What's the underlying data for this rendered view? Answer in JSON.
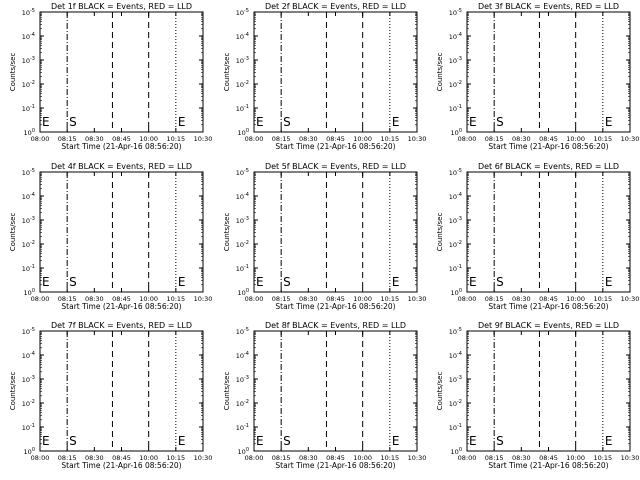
{
  "chart_data": [
    {
      "type": "line",
      "title": "Det 1f BLACK = Events, RED = LLD",
      "xlabel": "Start Time (21-Apr-16 08:56:20)",
      "ylabel": "Counts/sec",
      "markers": [
        "E",
        "S",
        "E"
      ],
      "series": [],
      "grid": false
    },
    {
      "type": "line",
      "title": "Det 2f BLACK = Events, RED = LLD",
      "xlabel": "Start Time (21-Apr-16 08:56:20)",
      "ylabel": "Counts/sec",
      "markers": [
        "E",
        "S",
        "E"
      ],
      "series": [],
      "grid": false
    },
    {
      "type": "line",
      "title": "Det 3f BLACK = Events, RED = LLD",
      "xlabel": "Start Time (21-Apr-16 08:56:20)",
      "ylabel": "Counts/sec",
      "markers": [
        "E",
        "S",
        "E"
      ],
      "series": [],
      "grid": false
    },
    {
      "type": "line",
      "title": "Det 4f BLACK = Events, RED = LLD",
      "xlabel": "Start Time (21-Apr-16 08:56:20)",
      "ylabel": "Counts/sec",
      "markers": [
        "E",
        "S",
        "E"
      ],
      "series": [],
      "grid": false
    },
    {
      "type": "line",
      "title": "Det 5f BLACK = Events, RED = LLD",
      "xlabel": "Start Time (21-Apr-16 08:56:20)",
      "ylabel": "Counts/sec",
      "markers": [
        "E",
        "S",
        "E"
      ],
      "series": [],
      "grid": false
    },
    {
      "type": "line",
      "title": "Det 6f BLACK = Events, RED = LLD",
      "xlabel": "Start Time (21-Apr-16 08:56:20)",
      "ylabel": "Counts/sec",
      "markers": [
        "E",
        "S",
        "E"
      ],
      "series": [],
      "grid": false
    },
    {
      "type": "line",
      "title": "Det 7f BLACK = Events, RED = LLD",
      "xlabel": "Start Time (21-Apr-16 08:56:20)",
      "ylabel": "Counts/sec",
      "markers": [
        "E",
        "S",
        "E"
      ],
      "series": [],
      "grid": false
    },
    {
      "type": "line",
      "title": "Det 8f BLACK = Events, RED = LLD",
      "xlabel": "Start Time (21-Apr-16 08:56:20)",
      "ylabel": "Counts/sec",
      "markers": [
        "E",
        "S",
        "E"
      ],
      "series": [],
      "grid": false
    },
    {
      "type": "line",
      "title": "Det 9f BLACK = Events, RED = LLD",
      "xlabel": "Start Time (21-Apr-16 08:56:20)",
      "ylabel": "Counts/sec",
      "markers": [
        "E",
        "S",
        "E"
      ],
      "series": [],
      "grid": false
    }
  ],
  "axes": {
    "x_ticks": [
      "08:00",
      "08:15",
      "08:30",
      "08:45",
      "10:00",
      "10:15",
      "10:30"
    ],
    "y_ticks": [
      "10",
      "10",
      "10",
      "10",
      "10",
      "10"
    ],
    "y_exponents": [
      "0",
      "-1",
      "-2",
      "-3",
      "-4",
      "-5"
    ],
    "y_scale": "log",
    "x_range_label": [
      "08:00",
      "10:30"
    ]
  },
  "vertical_lines": [
    {
      "x": "08:00",
      "style": "dotted",
      "label": "E"
    },
    {
      "x": "08:15",
      "style": "dashdot",
      "label": "S"
    },
    {
      "x": "08:40",
      "style": "dashed",
      "label": ""
    },
    {
      "x": "10:00",
      "style": "dashed",
      "label": ""
    },
    {
      "x": "10:15",
      "style": "dotted",
      "label": "E"
    },
    {
      "x": "10:30",
      "style": "dotted",
      "label": ""
    }
  ],
  "colors": {
    "events": "#000000",
    "lld": "#ff0000",
    "background": "#ffffff",
    "axes": "#000000"
  }
}
